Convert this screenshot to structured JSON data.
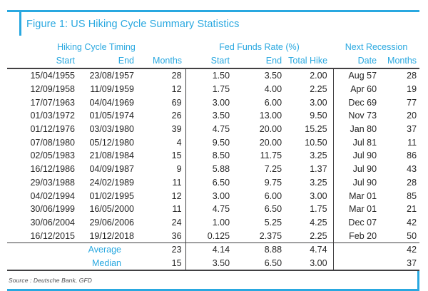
{
  "figure": {
    "accent_color": "#29a8e0"
  },
  "chart_data": {
    "type": "table",
    "title": "Figure 1: US Hiking Cycle Summary Statistics",
    "source": "Source : Deutsche Bank, GFD",
    "col_groups": [
      {
        "label": "Hiking Cycle Timing",
        "span": 3
      },
      {
        "label": "Fed Funds Rate (%)",
        "span": 3
      },
      {
        "label": "Next Recession",
        "span": 2
      }
    ],
    "columns": [
      "Start",
      "End",
      "Months",
      "Start",
      "End",
      "Total Hike",
      "Date",
      "Months"
    ],
    "rows": [
      [
        "15/04/1955",
        "23/08/1957",
        "28",
        "1.50",
        "3.50",
        "2.00",
        "Aug 57",
        "28"
      ],
      [
        "12/09/1958",
        "11/09/1959",
        "12",
        "1.75",
        "4.00",
        "2.25",
        "Apr 60",
        "19"
      ],
      [
        "17/07/1963",
        "04/04/1969",
        "69",
        "3.00",
        "6.00",
        "3.00",
        "Dec 69",
        "77"
      ],
      [
        "01/03/1972",
        "01/05/1974",
        "26",
        "3.50",
        "13.00",
        "9.50",
        "Nov 73",
        "20"
      ],
      [
        "01/12/1976",
        "03/03/1980",
        "39",
        "4.75",
        "20.00",
        "15.25",
        "Jan 80",
        "37"
      ],
      [
        "07/08/1980",
        "05/12/1980",
        "4",
        "9.50",
        "20.00",
        "10.50",
        "Jul 81",
        "11"
      ],
      [
        "02/05/1983",
        "21/08/1984",
        "15",
        "8.50",
        "11.75",
        "3.25",
        "Jul 90",
        "86"
      ],
      [
        "16/12/1986",
        "04/09/1987",
        "9",
        "5.88",
        "7.25",
        "1.37",
        "Jul 90",
        "43"
      ],
      [
        "29/03/1988",
        "24/02/1989",
        "11",
        "6.50",
        "9.75",
        "3.25",
        "Jul 90",
        "28"
      ],
      [
        "04/02/1994",
        "01/02/1995",
        "12",
        "3.00",
        "6.00",
        "3.00",
        "Mar 01",
        "85"
      ],
      [
        "30/06/1999",
        "16/05/2000",
        "11",
        "4.75",
        "6.50",
        "1.75",
        "Mar 01",
        "21"
      ],
      [
        "30/06/2004",
        "29/06/2006",
        "24",
        "1.00",
        "5.25",
        "4.25",
        "Dec 07",
        "42"
      ],
      [
        "16/12/2015",
        "19/12/2018",
        "36",
        "0.125",
        "2.375",
        "2.25",
        "Feb 20",
        "50"
      ]
    ],
    "summary_rows": [
      {
        "label": "Average",
        "values": [
          "23",
          "4.14",
          "8.88",
          "4.74",
          "",
          "42"
        ]
      },
      {
        "label": "Median",
        "values": [
          "15",
          "3.50",
          "6.50",
          "3.00",
          "",
          "37"
        ]
      }
    ]
  }
}
